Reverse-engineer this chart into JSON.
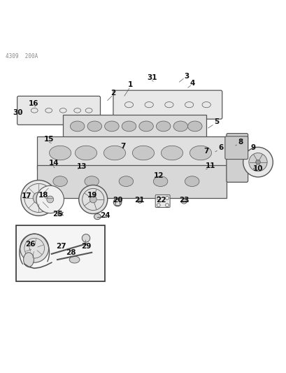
{
  "title": "",
  "header_text": "4309  200A",
  "bg_color": "#ffffff",
  "line_color": "#555555",
  "text_color": "#222222",
  "fig_width": 4.1,
  "fig_height": 5.33,
  "dpi": 100
}
